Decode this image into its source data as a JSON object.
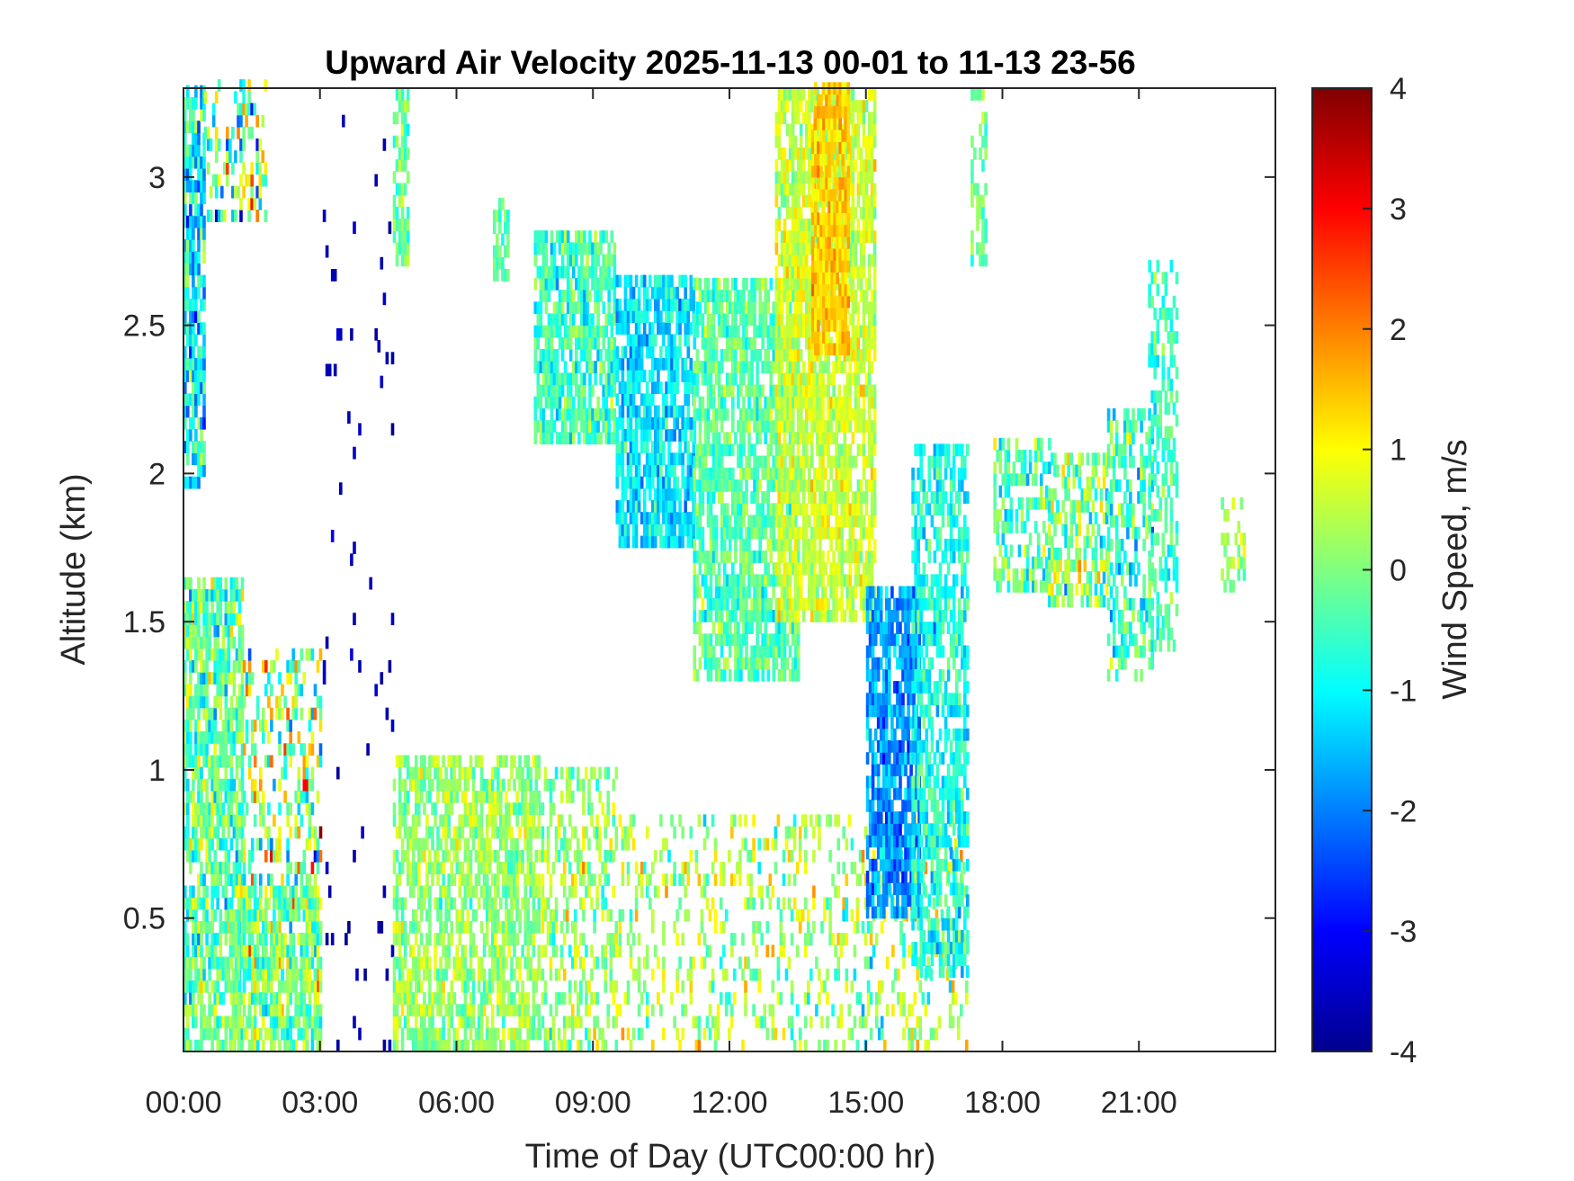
{
  "chart_data": {
    "type": "heatmap",
    "title": "Upward Air Velocity 2025-11-13 00-01 to 11-13 23-56",
    "xlabel": "Time of Day (UTC00:00 hr)",
    "ylabel": "Altitude (km)",
    "colorbar_label": "Wind Speed, m/s",
    "colormap": "jet",
    "xlim_hours": [
      0,
      24
    ],
    "ylim_km": [
      0.05,
      3.3
    ],
    "clim": [
      -4,
      4
    ],
    "x_ticks": [
      {
        "hour": 0,
        "label": "00:00"
      },
      {
        "hour": 3,
        "label": "03:00"
      },
      {
        "hour": 6,
        "label": "06:00"
      },
      {
        "hour": 9,
        "label": "09:00"
      },
      {
        "hour": 12,
        "label": "12:00"
      },
      {
        "hour": 15,
        "label": "15:00"
      },
      {
        "hour": 18,
        "label": "18:00"
      },
      {
        "hour": 21,
        "label": "21:00"
      }
    ],
    "y_ticks": [
      {
        "km": 0.5,
        "label": "0.5"
      },
      {
        "km": 1,
        "label": "1"
      },
      {
        "km": 1.5,
        "label": "1.5"
      },
      {
        "km": 2,
        "label": "2"
      },
      {
        "km": 2.5,
        "label": "2.5"
      },
      {
        "km": 3,
        "label": "3"
      }
    ],
    "colorbar_ticks": [
      {
        "v": 4,
        "label": "4"
      },
      {
        "v": 3,
        "label": "3"
      },
      {
        "v": 2,
        "label": "2"
      },
      {
        "v": 1,
        "label": "1"
      },
      {
        "v": 0,
        "label": "0"
      },
      {
        "v": -1,
        "label": "-1"
      },
      {
        "v": -2,
        "label": "-2"
      },
      {
        "v": -3,
        "label": "-3"
      },
      {
        "v": -4,
        "label": "-4"
      }
    ],
    "regions": [
      {
        "t": [
          0.0,
          0.45
        ],
        "z": [
          1.95,
          3.3
        ],
        "mean": -1.2,
        "spread": 1.6,
        "density": 0.8
      },
      {
        "t": [
          0.45,
          1.8
        ],
        "z": [
          2.85,
          3.3
        ],
        "mean": 0.0,
        "spread": 2.5,
        "density": 0.35
      },
      {
        "t": [
          0.0,
          1.3
        ],
        "z": [
          0.05,
          1.65
        ],
        "mean": -0.2,
        "spread": 1.4,
        "density": 0.75
      },
      {
        "t": [
          1.3,
          3.0
        ],
        "z": [
          0.05,
          1.4
        ],
        "mean": 0.3,
        "spread": 2.6,
        "density": 0.35
      },
      {
        "t": [
          1.0,
          3.0
        ],
        "z": [
          0.05,
          0.6
        ],
        "mean": -0.1,
        "spread": 1.2,
        "density": 0.7
      },
      {
        "t": [
          3.0,
          4.6
        ],
        "z": [
          0.05,
          3.2
        ],
        "mean": -3.6,
        "spread": 0.3,
        "density": 0.03
      },
      {
        "t": [
          4.6,
          7.8
        ],
        "z": [
          0.05,
          1.05
        ],
        "mean": 0.2,
        "spread": 0.9,
        "density": 0.65
      },
      {
        "t": [
          7.8,
          9.5
        ],
        "z": [
          0.05,
          1.0
        ],
        "mean": 0.2,
        "spread": 1.2,
        "density": 0.4
      },
      {
        "t": [
          9.5,
          17.2
        ],
        "z": [
          0.05,
          0.85
        ],
        "mean": 0.3,
        "spread": 1.4,
        "density": 0.25
      },
      {
        "t": [
          4.6,
          4.9
        ],
        "z": [
          2.7,
          3.3
        ],
        "mean": -0.2,
        "spread": 0.8,
        "density": 0.6
      },
      {
        "t": [
          6.8,
          7.1
        ],
        "z": [
          2.65,
          2.9
        ],
        "mean": -0.3,
        "spread": 0.6,
        "density": 0.6
      },
      {
        "t": [
          7.7,
          9.5
        ],
        "z": [
          2.1,
          2.8
        ],
        "mean": -0.5,
        "spread": 1.1,
        "density": 0.75
      },
      {
        "t": [
          9.5,
          11.2
        ],
        "z": [
          1.75,
          2.65
        ],
        "mean": -1.2,
        "spread": 0.9,
        "density": 0.75
      },
      {
        "t": [
          11.2,
          13.5
        ],
        "z": [
          1.3,
          2.65
        ],
        "mean": -0.3,
        "spread": 0.9,
        "density": 0.75
      },
      {
        "t": [
          13.0,
          15.2
        ],
        "z": [
          1.5,
          3.3
        ],
        "mean": 0.6,
        "spread": 0.8,
        "density": 0.8
      },
      {
        "t": [
          13.8,
          14.6
        ],
        "z": [
          2.4,
          3.3
        ],
        "mean": 1.4,
        "spread": 0.6,
        "density": 0.85
      },
      {
        "t": [
          15.0,
          16.2
        ],
        "z": [
          0.5,
          1.6
        ],
        "mean": -1.8,
        "spread": 0.9,
        "density": 0.8
      },
      {
        "t": [
          16.0,
          17.2
        ],
        "z": [
          0.3,
          2.1
        ],
        "mean": -0.8,
        "spread": 1.0,
        "density": 0.65
      },
      {
        "t": [
          17.3,
          17.6
        ],
        "z": [
          2.7,
          3.3
        ],
        "mean": -0.2,
        "spread": 0.8,
        "density": 0.5
      },
      {
        "t": [
          17.8,
          19.0
        ],
        "z": [
          1.6,
          2.1
        ],
        "mean": -0.3,
        "spread": 1.3,
        "density": 0.5
      },
      {
        "t": [
          19.0,
          20.3
        ],
        "z": [
          1.55,
          2.05
        ],
        "mean": 0.0,
        "spread": 1.6,
        "density": 0.55
      },
      {
        "t": [
          20.3,
          21.3
        ],
        "z": [
          1.3,
          2.2
        ],
        "mean": -0.6,
        "spread": 1.4,
        "density": 0.5
      },
      {
        "t": [
          21.2,
          21.8
        ],
        "z": [
          1.4,
          2.7
        ],
        "mean": -0.5,
        "spread": 0.9,
        "density": 0.45
      },
      {
        "t": [
          22.8,
          23.3
        ],
        "z": [
          1.6,
          1.9
        ],
        "mean": 0.4,
        "spread": 0.8,
        "density": 0.5
      }
    ]
  }
}
